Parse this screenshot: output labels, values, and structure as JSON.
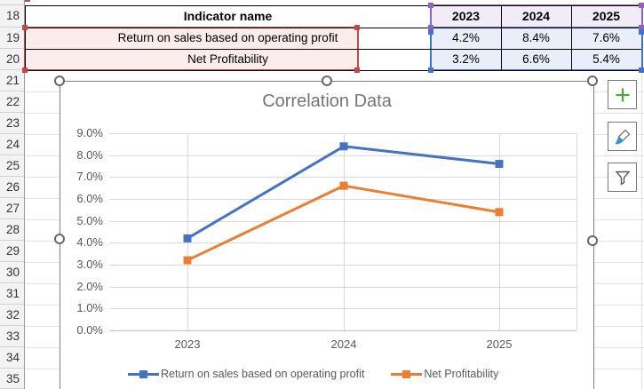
{
  "spreadsheet": {
    "row_numbers": [
      "18",
      "19",
      "20",
      "21",
      "22",
      "23",
      "24",
      "25",
      "26",
      "27",
      "28",
      "29",
      "30",
      "31",
      "32",
      "33",
      "34",
      "35"
    ],
    "table": {
      "indicator_header": "Indicator name",
      "year_headers": [
        "2023",
        "2024",
        "2025"
      ],
      "rows": [
        {
          "name": "Return on sales based on operating profit",
          "values": [
            "4.2%",
            "8.4%",
            "7.6%"
          ]
        },
        {
          "name": "Net Profitability",
          "values": [
            "3.2%",
            "6.6%",
            "5.4%"
          ]
        }
      ]
    }
  },
  "chart": {
    "title": "Correlation Data",
    "y_axis_labels": [
      "9.0%",
      "8.0%",
      "7.0%",
      "6.0%",
      "5.0%",
      "4.0%",
      "3.0%",
      "2.0%",
      "1.0%",
      "0.0%"
    ],
    "x_axis_labels": [
      "2023",
      "2024",
      "2025"
    ],
    "legend": [
      "Return on sales based on operating profit",
      "Net Profitability"
    ]
  },
  "chart_data": {
    "type": "line",
    "title": "Correlation Data",
    "categories": [
      "2023",
      "2024",
      "2025"
    ],
    "series": [
      {
        "name": "Return on sales based on operating profit",
        "color": "#4472C4",
        "values": [
          4.2,
          8.4,
          7.6
        ],
        "unit": "%"
      },
      {
        "name": "Net Profitability",
        "color": "#ED7D31",
        "values": [
          3.2,
          6.6,
          5.4
        ],
        "unit": "%"
      }
    ],
    "ylim": [
      0,
      9
    ],
    "y_tick_interval": 1,
    "grid": "horizontal and vertical major gridlines",
    "legend_position": "bottom",
    "markers": "square"
  },
  "chart_tools": {
    "elements_button": "chart elements",
    "styles_button": "chart styles",
    "filters_button": "chart filters"
  },
  "colors": {
    "series_blue": "#4472C4",
    "series_orange": "#ED7D31",
    "range_red_border": "#BE4B48",
    "range_red_fill": "#FBECEC",
    "range_purple_border": "#9163BE",
    "range_purple_fill": "#F2ECF8",
    "range_blue_border": "#4472C4",
    "range_blue_fill": "#E9EFF9",
    "chart_text": "#595959",
    "title_text": "#757575",
    "chart_gridline": "#D9D9D9",
    "sheet_gridline": "#E2E2E2",
    "plus_green": "#4EA72E",
    "brush_blue": "#2E9BD6"
  }
}
